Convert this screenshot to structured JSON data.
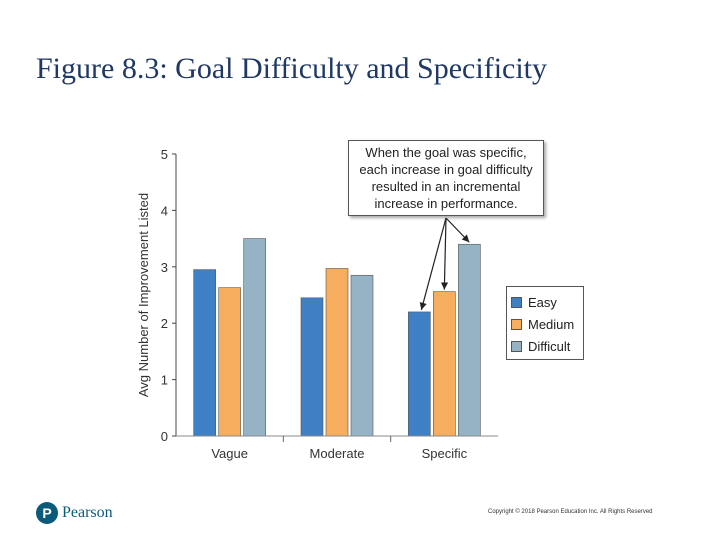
{
  "slide": {
    "title": "Figure 8.3: Goal Difficulty and Specificity",
    "logo_text": "Pearson",
    "logo_glyph": "P",
    "copyright": "Copyright © 2018 Pearson Education Inc. All Rights Reserved"
  },
  "chart_data": {
    "type": "bar",
    "title": "",
    "xlabel": "",
    "ylabel": "Avg Number of Improvement Listed",
    "ylim": [
      0,
      5
    ],
    "yticks": [
      "0",
      "1",
      "2",
      "3",
      "4",
      "5"
    ],
    "categories": [
      "Vague",
      "Moderate",
      "Specific"
    ],
    "series": [
      {
        "name": "Easy",
        "color": "#3f7fc4",
        "values": [
          2.95,
          2.45,
          2.2
        ]
      },
      {
        "name": "Medium",
        "color": "#f7ad5e",
        "values": [
          2.63,
          2.97,
          2.56
        ]
      },
      {
        "name": "Difficult",
        "color": "#96b3c6",
        "values": [
          3.5,
          2.85,
          3.4
        ]
      }
    ],
    "grid": false,
    "legend_position": "right",
    "annotation": "When the goal was specific, each increase in goal difficulty resulted in an incremental increase in performance."
  }
}
